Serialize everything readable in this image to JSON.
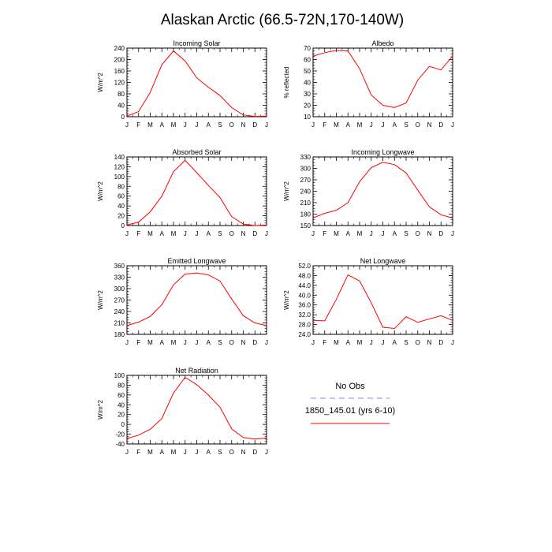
{
  "figure_title": "Alaskan Arctic (66.5-72N,170-140W)",
  "legend": {
    "obs_label": "No Obs",
    "obs_color": "#8080ff",
    "model_label": "1850_145.01 (yrs 6-10)",
    "model_color": "#ff0000"
  },
  "chart_data": [
    {
      "type": "line",
      "title": "Incoming Solar",
      "ylabel": "W/m^2",
      "categories": [
        "J",
        "F",
        "M",
        "A",
        "M",
        "J",
        "J",
        "A",
        "S",
        "O",
        "N",
        "D",
        "J"
      ],
      "ylim": [
        0,
        240
      ],
      "yticks": [
        "0",
        "40",
        "80",
        "120",
        "160",
        "200",
        "240"
      ],
      "series": [
        {
          "values": [
            2,
            18,
            85,
            182,
            230,
            195,
            136,
            103,
            74,
            32,
            6,
            1,
            2
          ]
        }
      ]
    },
    {
      "type": "line",
      "title": "Albedo",
      "ylabel": "% reflected",
      "categories": [
        "J",
        "F",
        "M",
        "A",
        "M",
        "J",
        "J",
        "A",
        "S",
        "O",
        "N",
        "D",
        "J"
      ],
      "ylim": [
        10,
        70
      ],
      "yticks": [
        "10",
        "20",
        "30",
        "40",
        "50",
        "60",
        "70"
      ],
      "series": [
        {
          "values": [
            63,
            66,
            68,
            67.5,
            52,
            29,
            20,
            18,
            22,
            42,
            54,
            51,
            63
          ]
        }
      ]
    },
    {
      "type": "line",
      "title": "Absorbed Solar",
      "ylabel": "W/m^2",
      "categories": [
        "J",
        "F",
        "M",
        "A",
        "M",
        "J",
        "J",
        "A",
        "S",
        "O",
        "N",
        "D",
        "J"
      ],
      "ylim": [
        0,
        140
      ],
      "yticks": [
        "0",
        "20",
        "40",
        "60",
        "80",
        "100",
        "120",
        "140"
      ],
      "series": [
        {
          "values": [
            1,
            7,
            28,
            60,
            110,
            133,
            108,
            82,
            57,
            18,
            3,
            0,
            1
          ]
        }
      ]
    },
    {
      "type": "line",
      "title": "Incoming Longwave",
      "ylabel": "W/m^2",
      "categories": [
        "J",
        "F",
        "M",
        "A",
        "M",
        "J",
        "J",
        "A",
        "S",
        "O",
        "N",
        "D",
        "J"
      ],
      "ylim": [
        150,
        330
      ],
      "yticks": [
        "150",
        "180",
        "210",
        "240",
        "270",
        "300",
        "330"
      ],
      "series": [
        {
          "values": [
            170,
            182,
            190,
            210,
            265,
            302,
            316,
            310,
            288,
            243,
            199,
            178,
            170
          ]
        }
      ]
    },
    {
      "type": "line",
      "title": "Emitted Longwave",
      "ylabel": "W/m^2",
      "categories": [
        "J",
        "F",
        "M",
        "A",
        "M",
        "J",
        "J",
        "A",
        "S",
        "O",
        "N",
        "D",
        "J"
      ],
      "ylim": [
        180,
        360
      ],
      "yticks": [
        "180",
        "210",
        "240",
        "270",
        "300",
        "330",
        "360"
      ],
      "series": [
        {
          "values": [
            203,
            212,
            227,
            258,
            310,
            338,
            341,
            336,
            320,
            273,
            229,
            210,
            203
          ]
        }
      ]
    },
    {
      "type": "line",
      "title": "Net Longwave",
      "ylabel": "W/m^2",
      "categories": [
        "J",
        "F",
        "M",
        "A",
        "M",
        "J",
        "J",
        "A",
        "S",
        "O",
        "N",
        "D",
        "J"
      ],
      "ylim": [
        24,
        52
      ],
      "yticks": [
        "24.0",
        "28.0",
        "32.0",
        "36.0",
        "40.0",
        "44.0",
        "48.0",
        "52.0"
      ],
      "series": [
        {
          "values": [
            29.7,
            29.5,
            38.3,
            48.3,
            45.8,
            36.9,
            26.9,
            26.4,
            31.2,
            28.9,
            30.3,
            31.6,
            29.7
          ]
        }
      ]
    },
    {
      "type": "line",
      "title": "Net Radiation",
      "ylabel": "W/m^2",
      "categories": [
        "J",
        "F",
        "M",
        "A",
        "M",
        "J",
        "J",
        "A",
        "S",
        "O",
        "N",
        "D",
        "J"
      ],
      "ylim": [
        -40,
        100
      ],
      "yticks": [
        "-40",
        "-20",
        "0",
        "20",
        "40",
        "60",
        "80",
        "100"
      ],
      "series": [
        {
          "values": [
            -29,
            -22,
            -10,
            12,
            64,
            96,
            81,
            60,
            35,
            -9,
            -27,
            -30,
            -28
          ]
        }
      ]
    }
  ]
}
